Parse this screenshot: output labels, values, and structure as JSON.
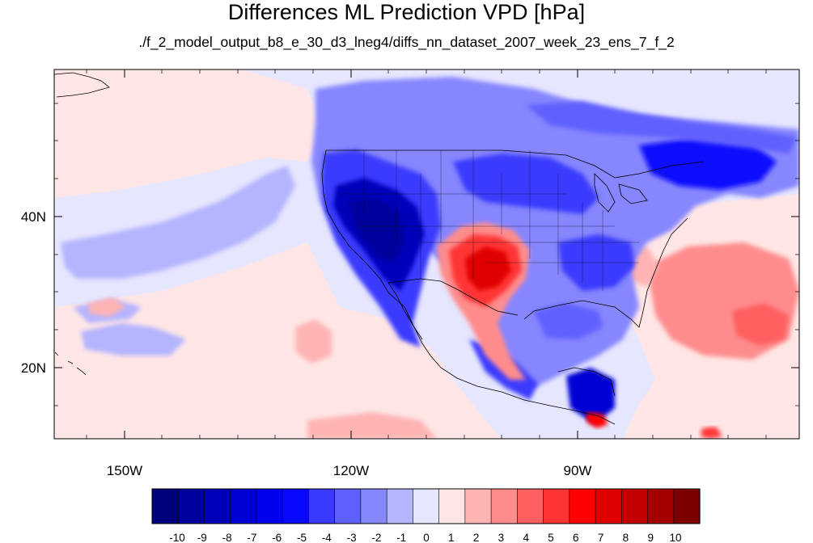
{
  "figure": {
    "title": "Differences ML Prediction VPD [hPa]",
    "subtitle": "./f_2_model_output_b8_e_30_d3_lneg4/diffs_nn_dataset_2007_week_23_ens_7_f_2"
  },
  "map": {
    "lon_range": [
      -160,
      -62
    ],
    "lat_range": [
      10,
      59
    ],
    "lon_tick_labels": [
      "150W",
      "120W",
      "90W"
    ],
    "lat_tick_labels": [
      "20N",
      "40N"
    ]
  },
  "colorbar": {
    "tick_labels": [
      "-10",
      "-9",
      "-8",
      "-7",
      "-6",
      "-5",
      "-4",
      "-3",
      "-2",
      "-1",
      "0",
      "1",
      "2",
      "3",
      "4",
      "5",
      "6",
      "7",
      "8",
      "9",
      "10"
    ],
    "colors": [
      "#00007a",
      "#00009a",
      "#0000b9",
      "#0000d4",
      "#0000ee",
      "#0808ff",
      "#3a3aff",
      "#6060ff",
      "#8686ff",
      "#b4b4ff",
      "#e6e6ff",
      "#ffe6e6",
      "#ffb4b4",
      "#ff8c8c",
      "#ff5f5f",
      "#ff3535",
      "#ff0000",
      "#e00000",
      "#c30000",
      "#a40000",
      "#7d0000"
    ]
  },
  "icons": {
    "map_background": "ocean-plain",
    "boundaries": "country-state-lines"
  }
}
